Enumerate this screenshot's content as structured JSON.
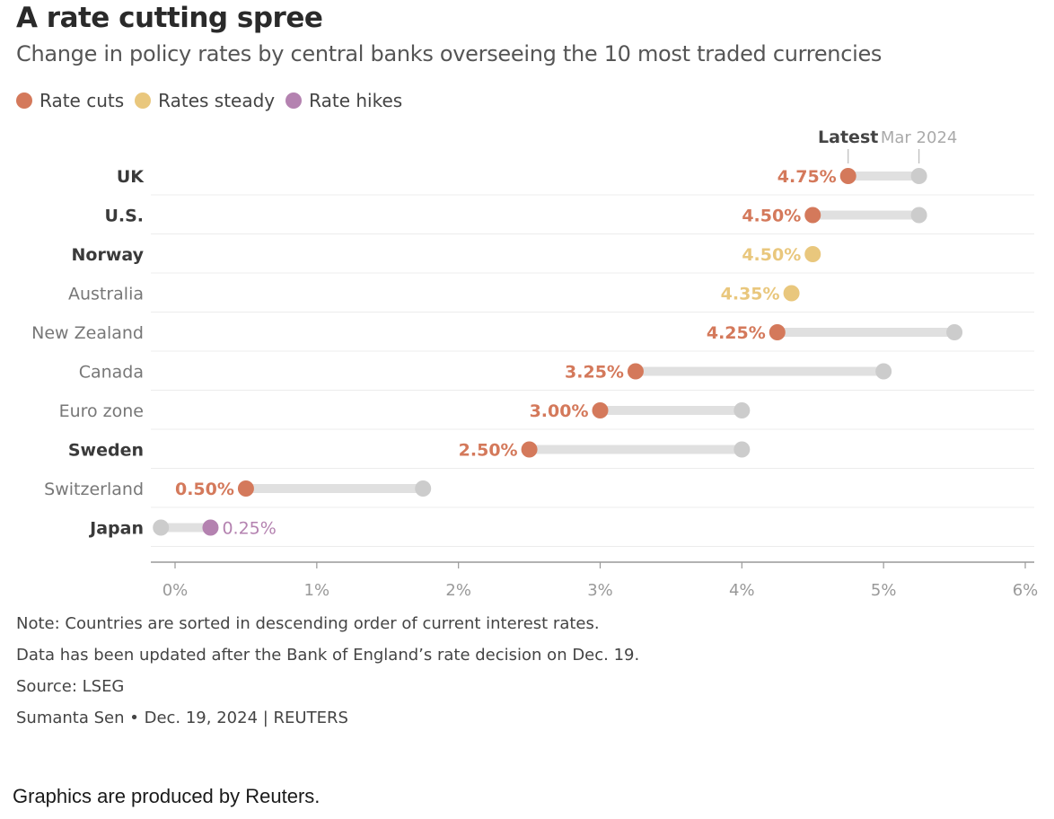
{
  "title": "A rate cutting spree",
  "subtitle": "Change in policy rates by central banks overseeing the 10 most traded currencies",
  "legend": [
    {
      "label": "Rate cuts",
      "color": "#d4795b"
    },
    {
      "label": "Rates steady",
      "color": "#e9c77d"
    },
    {
      "label": "Rate hikes",
      "color": "#b482b0"
    }
  ],
  "colors": {
    "cut": "#d4795b",
    "steady": "#e9c77d",
    "hike": "#b482b0",
    "previous": "#cccccc",
    "connector": "#e0e0e0"
  },
  "chart_data": {
    "type": "dumbbell",
    "header_latest": "Latest",
    "header_previous": "Mar 2024",
    "xlim": [
      0,
      6
    ],
    "x_ticks": [
      {
        "value": 0,
        "label": "0%"
      },
      {
        "value": 1,
        "label": "1%"
      },
      {
        "value": 2,
        "label": "2%"
      },
      {
        "value": 3,
        "label": "3%"
      },
      {
        "value": 4,
        "label": "4%"
      },
      {
        "value": 5,
        "label": "5%"
      },
      {
        "value": 6,
        "label": "6%"
      }
    ],
    "rows": [
      {
        "country": "UK",
        "bold": true,
        "previous": 5.25,
        "latest": 4.75,
        "label": "4.75%",
        "status": "cut"
      },
      {
        "country": "U.S.",
        "bold": true,
        "previous": 5.25,
        "latest": 4.5,
        "label": "4.50%",
        "status": "cut"
      },
      {
        "country": "Norway",
        "bold": true,
        "previous": 4.5,
        "latest": 4.5,
        "label": "4.50%",
        "status": "steady"
      },
      {
        "country": "Australia",
        "bold": false,
        "previous": 4.35,
        "latest": 4.35,
        "label": "4.35%",
        "status": "steady"
      },
      {
        "country": "New Zealand",
        "bold": false,
        "previous": 5.5,
        "latest": 4.25,
        "label": "4.25%",
        "status": "cut"
      },
      {
        "country": "Canada",
        "bold": false,
        "previous": 5.0,
        "latest": 3.25,
        "label": "3.25%",
        "status": "cut"
      },
      {
        "country": "Euro zone",
        "bold": false,
        "previous": 4.0,
        "latest": 3.0,
        "label": "3.00%",
        "status": "cut"
      },
      {
        "country": "Sweden",
        "bold": true,
        "previous": 4.0,
        "latest": 2.5,
        "label": "2.50%",
        "status": "cut"
      },
      {
        "country": "Switzerland",
        "bold": false,
        "previous": 1.75,
        "latest": 0.5,
        "label": "0.50%",
        "status": "cut"
      },
      {
        "country": "Japan",
        "bold": true,
        "previous": -0.1,
        "latest": 0.25,
        "label": "0.25%",
        "status": "hike"
      }
    ]
  },
  "notes": [
    "Note: Countries are sorted in descending order of current interest rates.",
    "Data has been updated after the Bank of England’s rate decision on Dec. 19.",
    "Source: LSEG",
    "Sumanta Sen • Dec. 19, 2024 | REUTERS"
  ],
  "footer": "Graphics are produced by Reuters."
}
